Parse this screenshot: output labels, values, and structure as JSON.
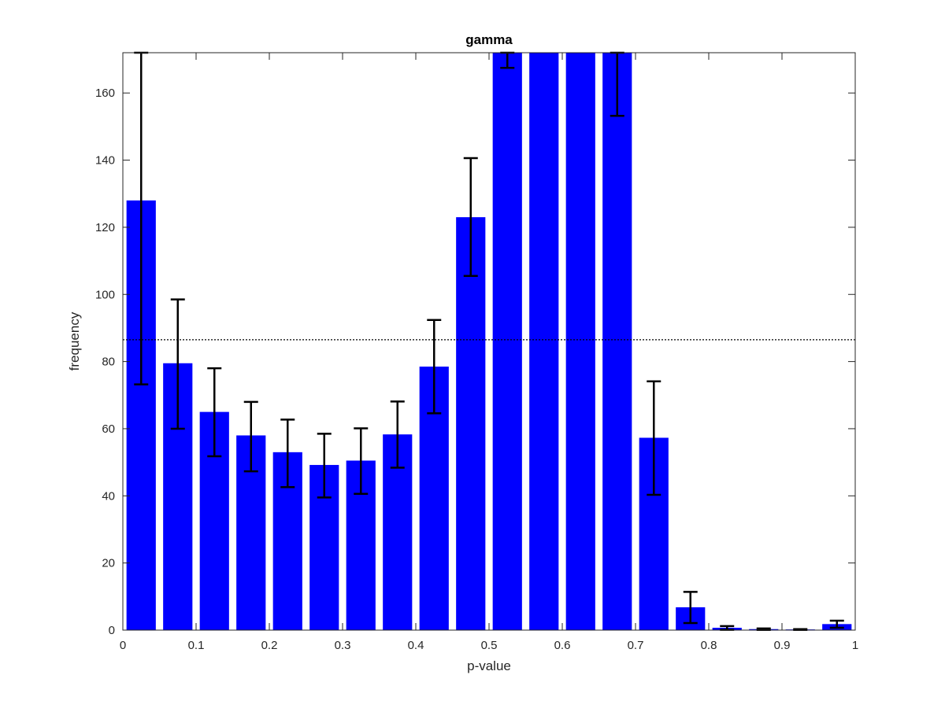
{
  "chart_data": {
    "type": "bar",
    "title": "gamma",
    "xlabel": "p-value",
    "ylabel": "frequency",
    "xlim": [
      0,
      1
    ],
    "ylim": [
      0,
      172
    ],
    "xticks": [
      "0",
      "0.1",
      "0.2",
      "0.3",
      "0.4",
      "0.5",
      "0.6",
      "0.7",
      "0.8",
      "0.9",
      "1"
    ],
    "yticks": [
      "0",
      "20",
      "40",
      "60",
      "80",
      "100",
      "120",
      "140",
      "160"
    ],
    "bin_centers": [
      0.025,
      0.075,
      0.125,
      0.175,
      0.225,
      0.275,
      0.325,
      0.375,
      0.425,
      0.475,
      0.525,
      0.575,
      0.625,
      0.675,
      0.725,
      0.775,
      0.825,
      0.875,
      0.925,
      0.975
    ],
    "values": [
      128,
      79.5,
      65,
      58,
      53,
      49.2,
      50.5,
      58.3,
      78.5,
      123,
      172,
      172,
      172,
      172,
      57.3,
      6.8,
      0.7,
      0.3,
      0.2,
      1.8
    ],
    "error_low": [
      73.2,
      60,
      51.8,
      47.3,
      42.6,
      39.5,
      40.6,
      48.4,
      64.6,
      105.5,
      167.5,
      null,
      null,
      153.2,
      40.3,
      2.1,
      0.1,
      0.05,
      0.05,
      0.7
    ],
    "error_high": [
      172,
      98.5,
      78,
      68,
      62.7,
      58.5,
      60.1,
      68.1,
      92.4,
      140.6,
      172,
      null,
      null,
      172,
      74.1,
      11.4,
      1.2,
      0.5,
      0.3,
      2.8
    ],
    "reference_line": 86.5,
    "bar_color": "#0000ff",
    "errorbar_color": "#000000",
    "grid": false,
    "legend": "none"
  }
}
